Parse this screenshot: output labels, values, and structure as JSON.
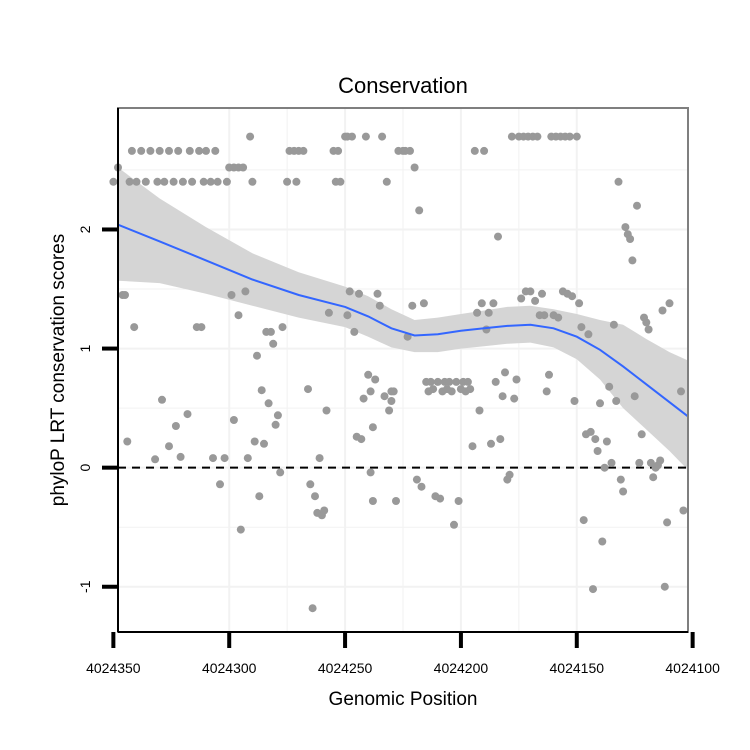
{
  "chart_data": {
    "type": "scatter",
    "title": "Conservation",
    "xlabel": "Genomic Position",
    "ylabel": "phyloP LRT conservation scores",
    "x_reversed": true,
    "xlim": [
      4024102,
      4024348
    ],
    "ylim": [
      -1.38,
      3.02
    ],
    "x_ticks": [
      4024350,
      4024300,
      4024250,
      4024200,
      4024150,
      4024100
    ],
    "y_ticks": [
      -1,
      0,
      1,
      2
    ],
    "grid": true,
    "reference_line": {
      "y": 0,
      "style": "dashed"
    },
    "colors": {
      "points": "#999999",
      "smooth_line": "#3366ff",
      "ribbon": "#d3d3d3",
      "grid": "#f2f2f2",
      "panel_border": "#7f7f7f"
    },
    "points": [
      [
        4024348,
        2.52
      ],
      [
        4024346,
        1.45
      ],
      [
        4024345,
        1.45
      ],
      [
        4024344,
        0.22
      ],
      [
        4024343,
        2.4
      ],
      [
        4024342,
        2.66
      ],
      [
        4024341,
        1.18
      ],
      [
        4024340,
        2.4
      ],
      [
        4024338,
        2.66
      ],
      [
        4024336,
        2.4
      ],
      [
        4024334,
        2.66
      ],
      [
        4024332,
        0.07
      ],
      [
        4024331,
        2.4
      ],
      [
        4024330,
        2.66
      ],
      [
        4024329,
        0.57
      ],
      [
        4024328,
        2.4
      ],
      [
        4024326,
        2.66
      ],
      [
        4024326,
        0.18
      ],
      [
        4024324,
        2.4
      ],
      [
        4024323,
        0.35
      ],
      [
        4024322,
        2.66
      ],
      [
        4024320,
        2.4
      ],
      [
        4024318,
        0.45
      ],
      [
        4024317,
        2.66
      ],
      [
        4024316,
        2.4
      ],
      [
        4024314,
        1.18
      ],
      [
        4024313,
        2.66
      ],
      [
        4024312,
        1.18
      ],
      [
        4024311,
        2.4
      ],
      [
        4024310,
        2.66
      ],
      [
        4024308,
        2.4
      ],
      [
        4024307,
        0.08
      ],
      [
        4024306,
        2.66
      ],
      [
        4024305,
        2.4
      ],
      [
        4024304,
        -0.14
      ],
      [
        4024302,
        0.08
      ],
      [
        4024301,
        2.4
      ],
      [
        4024300,
        2.52
      ],
      [
        4024299,
        1.45
      ],
      [
        4024298,
        2.52
      ],
      [
        4024298,
        0.4
      ],
      [
        4024296,
        2.52
      ],
      [
        4024296,
        1.28
      ],
      [
        4024295,
        -0.52
      ],
      [
        4024294,
        2.52
      ],
      [
        4024293,
        1.48
      ],
      [
        4024292,
        0.08
      ],
      [
        4024291,
        2.78
      ],
      [
        4024290,
        2.4
      ],
      [
        4024289,
        0.22
      ],
      [
        4024288,
        0.94
      ],
      [
        4024287,
        -0.24
      ],
      [
        4024286,
        0.65
      ],
      [
        4024285,
        0.2
      ],
      [
        4024284,
        1.14
      ],
      [
        4024283,
        0.54
      ],
      [
        4024282,
        1.14
      ],
      [
        4024281,
        1.04
      ],
      [
        4024280,
        0.36
      ],
      [
        4024279,
        0.44
      ],
      [
        4024278,
        -0.04
      ],
      [
        4024277,
        1.18
      ],
      [
        4024275,
        2.4
      ],
      [
        4024274,
        2.66
      ],
      [
        4024272,
        2.66
      ],
      [
        4024271,
        2.4
      ],
      [
        4024270,
        2.66
      ],
      [
        4024268,
        2.66
      ],
      [
        4024266,
        0.66
      ],
      [
        4024265,
        -0.14
      ],
      [
        4024264,
        -1.18
      ],
      [
        4024263,
        -0.24
      ],
      [
        4024262,
        -0.38
      ],
      [
        4024261,
        0.08
      ],
      [
        4024260,
        -0.4
      ],
      [
        4024259,
        -0.36
      ],
      [
        4024258,
        0.48
      ],
      [
        4024257,
        1.3
      ],
      [
        4024255,
        2.66
      ],
      [
        4024254,
        2.4
      ],
      [
        4024253,
        2.66
      ],
      [
        4024252,
        2.4
      ],
      [
        4024250,
        2.78
      ],
      [
        4024249,
        1.28
      ],
      [
        4024249,
        2.78
      ],
      [
        4024248,
        1.48
      ],
      [
        4024247,
        2.78
      ],
      [
        4024246,
        1.14
      ],
      [
        4024245,
        0.26
      ],
      [
        4024244,
        1.46
      ],
      [
        4024243,
        0.24
      ],
      [
        4024242,
        0.58
      ],
      [
        4024241,
        2.78
      ],
      [
        4024240,
        0.78
      ],
      [
        4024239,
        -0.04
      ],
      [
        4024239,
        0.64
      ],
      [
        4024238,
        -0.28
      ],
      [
        4024238,
        0.34
      ],
      [
        4024237,
        0.74
      ],
      [
        4024236,
        1.46
      ],
      [
        4024235,
        1.36
      ],
      [
        4024234,
        2.78
      ],
      [
        4024233,
        0.6
      ],
      [
        4024232,
        2.4
      ],
      [
        4024231,
        0.48
      ],
      [
        4024230,
        0.64
      ],
      [
        4024230,
        0.56
      ],
      [
        4024229,
        0.64
      ],
      [
        4024228,
        -0.28
      ],
      [
        4024227,
        2.66
      ],
      [
        4024225,
        2.66
      ],
      [
        4024224,
        2.66
      ],
      [
        4024223,
        1.1
      ],
      [
        4024222,
        2.66
      ],
      [
        4024221,
        1.36
      ],
      [
        4024220,
        2.52
      ],
      [
        4024219,
        -0.1
      ],
      [
        4024218,
        2.16
      ],
      [
        4024217,
        -0.16
      ],
      [
        4024216,
        1.38
      ],
      [
        4024215,
        0.72
      ],
      [
        4024214,
        0.64
      ],
      [
        4024213,
        0.72
      ],
      [
        4024212,
        0.66
      ],
      [
        4024211,
        -0.24
      ],
      [
        4024210,
        0.72
      ],
      [
        4024209,
        -0.26
      ],
      [
        4024208,
        0.64
      ],
      [
        4024207,
        0.72
      ],
      [
        4024206,
        0.66
      ],
      [
        4024205,
        0.72
      ],
      [
        4024204,
        0.64
      ],
      [
        4024203,
        -0.48
      ],
      [
        4024202,
        0.72
      ],
      [
        4024201,
        -0.28
      ],
      [
        4024200,
        0.66
      ],
      [
        4024199,
        0.72
      ],
      [
        4024198,
        0.64
      ],
      [
        4024197,
        0.72
      ],
      [
        4024196,
        0.66
      ],
      [
        4024195,
        0.18
      ],
      [
        4024194,
        2.66
      ],
      [
        4024193,
        1.3
      ],
      [
        4024192,
        0.48
      ],
      [
        4024191,
        1.38
      ],
      [
        4024190,
        2.66
      ],
      [
        4024189,
        1.16
      ],
      [
        4024188,
        1.3
      ],
      [
        4024187,
        0.2
      ],
      [
        4024186,
        1.38
      ],
      [
        4024185,
        0.72
      ],
      [
        4024184,
        1.94
      ],
      [
        4024183,
        0.24
      ],
      [
        4024182,
        0.6
      ],
      [
        4024181,
        0.8
      ],
      [
        4024180,
        -0.1
      ],
      [
        4024179,
        -0.06
      ],
      [
        4024178,
        2.78
      ],
      [
        4024177,
        0.58
      ],
      [
        4024176,
        0.74
      ],
      [
        4024175,
        2.78
      ],
      [
        4024174,
        1.42
      ],
      [
        4024173,
        2.78
      ],
      [
        4024172,
        1.48
      ],
      [
        4024171,
        2.78
      ],
      [
        4024170,
        1.48
      ],
      [
        4024169,
        2.78
      ],
      [
        4024168,
        1.4
      ],
      [
        4024167,
        2.78
      ],
      [
        4024166,
        1.28
      ],
      [
        4024165,
        1.46
      ],
      [
        4024164,
        1.28
      ],
      [
        4024163,
        0.64
      ],
      [
        4024162,
        0.78
      ],
      [
        4024161,
        2.78
      ],
      [
        4024160,
        1.28
      ],
      [
        4024159,
        2.78
      ],
      [
        4024158,
        1.26
      ],
      [
        4024157,
        2.78
      ],
      [
        4024156,
        1.48
      ],
      [
        4024155,
        2.78
      ],
      [
        4024154,
        1.46
      ],
      [
        4024153,
        2.78
      ],
      [
        4024152,
        1.44
      ],
      [
        4024151,
        0.56
      ],
      [
        4024150,
        2.78
      ],
      [
        4024149,
        1.38
      ],
      [
        4024148,
        1.18
      ],
      [
        4024147,
        -0.44
      ],
      [
        4024146,
        0.28
      ],
      [
        4024145,
        1.12
      ],
      [
        4024144,
        0.3
      ],
      [
        4024143,
        -1.02
      ],
      [
        4024142,
        0.24
      ],
      [
        4024141,
        0.14
      ],
      [
        4024140,
        0.54
      ],
      [
        4024139,
        -0.62
      ],
      [
        4024138,
        0.0
      ],
      [
        4024137,
        0.22
      ],
      [
        4024136,
        0.68
      ],
      [
        4024135,
        0.04
      ],
      [
        4024134,
        1.2
      ],
      [
        4024133,
        0.56
      ],
      [
        4024132,
        2.4
      ],
      [
        4024131,
        -0.1
      ],
      [
        4024130,
        -0.2
      ],
      [
        4024129,
        2.02
      ],
      [
        4024128,
        1.96
      ],
      [
        4024127,
        1.92
      ],
      [
        4024126,
        1.74
      ],
      [
        4024125,
        0.6
      ],
      [
        4024124,
        2.2
      ],
      [
        4024123,
        0.04
      ],
      [
        4024122,
        0.28
      ],
      [
        4024121,
        1.26
      ],
      [
        4024120,
        1.22
      ],
      [
        4024119,
        1.16
      ],
      [
        4024118,
        0.04
      ],
      [
        4024117,
        -0.08
      ],
      [
        4024116,
        0.0
      ],
      [
        4024115,
        0.02
      ],
      [
        4024114,
        0.06
      ],
      [
        4024113,
        1.32
      ],
      [
        4024112,
        -1.0
      ],
      [
        4024111,
        -0.46
      ],
      [
        4024110,
        1.38
      ],
      [
        4024105,
        0.64
      ],
      [
        4024104,
        -0.36
      ],
      [
        4024350,
        2.4
      ],
      [
        4024321,
        0.09
      ]
    ],
    "smooth": {
      "x": [
        4024348,
        4024330,
        4024310,
        4024290,
        4024270,
        4024250,
        4024240,
        4024230,
        4024220,
        4024210,
        4024200,
        4024190,
        4024180,
        4024170,
        4024160,
        4024150,
        4024140,
        4024130,
        4024120,
        4024110,
        4024102
      ],
      "y": [
        2.04,
        1.9,
        1.74,
        1.58,
        1.45,
        1.35,
        1.27,
        1.17,
        1.11,
        1.12,
        1.15,
        1.17,
        1.19,
        1.2,
        1.17,
        1.1,
        0.99,
        0.85,
        0.7,
        0.55,
        0.43
      ],
      "lower": [
        1.57,
        1.55,
        1.46,
        1.36,
        1.26,
        1.18,
        1.1,
        1.01,
        0.97,
        0.97,
        1.0,
        1.02,
        1.04,
        1.05,
        1.01,
        0.91,
        0.74,
        0.5,
        0.32,
        0.14,
        -0.02
      ],
      "upper": [
        2.52,
        2.26,
        2.02,
        1.8,
        1.64,
        1.52,
        1.44,
        1.33,
        1.24,
        1.26,
        1.29,
        1.32,
        1.35,
        1.36,
        1.33,
        1.29,
        1.24,
        1.2,
        1.08,
        0.97,
        0.9
      ]
    }
  }
}
